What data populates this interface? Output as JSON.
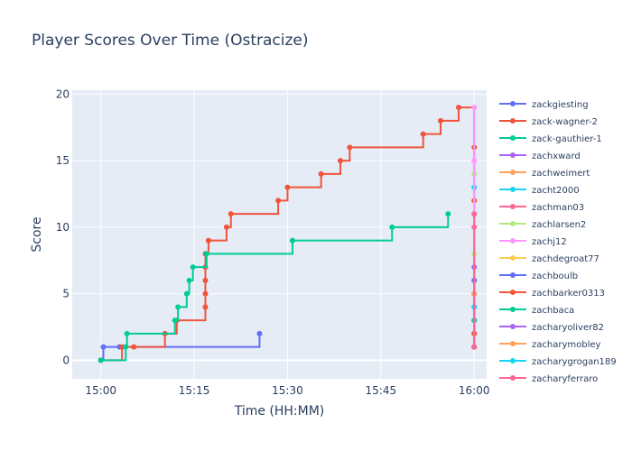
{
  "chart_data": {
    "type": "line",
    "title": "Player Scores Over Time (Ostracize)",
    "xlabel": "Time (HH:MM)",
    "ylabel": "Score",
    "x_ticks": [
      "15:00",
      "15:15",
      "15:30",
      "15:45",
      "16:00"
    ],
    "x_tick_minutes": [
      0,
      15,
      30,
      45,
      60
    ],
    "xlim_minutes": [
      -4.6,
      62
    ],
    "y_ticks": [
      0,
      5,
      10,
      15,
      20
    ],
    "ylim": [
      -1.4,
      20.3
    ],
    "line_shape": "step",
    "grid": true,
    "legend_position": "right",
    "series": [
      {
        "name": "zackgiesting",
        "color": "#636efa",
        "x": [
          0,
          0.4,
          3,
          25.5
        ],
        "y": [
          0,
          1,
          1,
          2
        ]
      },
      {
        "name": "zack-wagner-2",
        "color": "#EF553B",
        "x": [
          0,
          3.4,
          5.3,
          10.3,
          12.2,
          16.8,
          16.8,
          16.8,
          16.8,
          16.8,
          16.9,
          17.3,
          20.2,
          20.9,
          28.5,
          30,
          35.4,
          38.5,
          40,
          51.8,
          54.6,
          57.5,
          60,
          60,
          60,
          60,
          60
        ],
        "y": [
          0,
          1,
          1,
          2,
          3,
          4,
          5,
          6,
          7,
          8,
          8,
          9,
          10,
          11,
          12,
          13,
          14,
          15,
          16,
          17,
          18,
          19,
          16,
          12,
          5,
          2,
          1
        ]
      },
      {
        "name": "zack-gauthier-1",
        "color": "#00cc96",
        "x": [
          0,
          4,
          4.2,
          11.9,
          12.4,
          13.8,
          14.2,
          14.8,
          17,
          30.8,
          46.8,
          55.8
        ],
        "y": [
          0,
          1,
          2,
          3,
          4,
          5,
          6,
          7,
          8,
          9,
          10,
          11
        ]
      },
      {
        "name": "zachxward",
        "color": "#ab63fa",
        "x": [
          60,
          60
        ],
        "y": [
          1,
          3
        ]
      },
      {
        "name": "zachweimert",
        "color": "#FFA15A",
        "x": [
          60,
          60
        ],
        "y": [
          1,
          5
        ]
      },
      {
        "name": "zacht2000",
        "color": "#19d3f3",
        "x": [
          60,
          60
        ],
        "y": [
          1,
          13
        ]
      },
      {
        "name": "zachman03",
        "color": "#FF6692",
        "x": [
          60,
          60
        ],
        "y": [
          1,
          10
        ]
      },
      {
        "name": "zachlarsen2",
        "color": "#B6E880",
        "x": [
          60,
          60,
          60
        ],
        "y": [
          1,
          8,
          14
        ]
      },
      {
        "name": "zachj12",
        "color": "#FF97FF",
        "x": [
          60,
          60,
          60,
          60
        ],
        "y": [
          1,
          4,
          15,
          19
        ]
      },
      {
        "name": "zachdegroat77",
        "color": "#FECB52",
        "x": [
          60,
          60
        ],
        "y": [
          1,
          11
        ]
      },
      {
        "name": "zachboulb",
        "color": "#636efa",
        "x": [
          60,
          60
        ],
        "y": [
          1,
          6
        ]
      },
      {
        "name": "zachbarker0313",
        "color": "#EF553B",
        "x": [
          60,
          60
        ],
        "y": [
          1,
          2
        ]
      },
      {
        "name": "zachbaca",
        "color": "#00cc96",
        "x": [
          60,
          60
        ],
        "y": [
          1,
          3
        ]
      },
      {
        "name": "zacharyoliver82",
        "color": "#ab63fa",
        "x": [
          60,
          60
        ],
        "y": [
          1,
          7
        ]
      },
      {
        "name": "zacharymobley",
        "color": "#FFA15A",
        "x": [
          60,
          60
        ],
        "y": [
          1,
          5
        ]
      },
      {
        "name": "zacharygrogan189",
        "color": "#19d3f3",
        "x": [
          60,
          60
        ],
        "y": [
          1,
          4
        ]
      },
      {
        "name": "zacharyferraro",
        "color": "#FF6692",
        "x": [
          60,
          60
        ],
        "y": [
          1,
          11
        ]
      }
    ]
  }
}
